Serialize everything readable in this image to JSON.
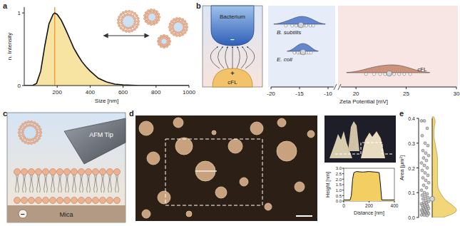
{
  "chart_data": [
    {
      "type": "line",
      "label": "a",
      "x_label": "Size [nm]",
      "y_label": "n. Intensity",
      "x": [
        0,
        50,
        75,
        100,
        125,
        150,
        175,
        185,
        200,
        225,
        250,
        275,
        300,
        325,
        350,
        375,
        400,
        450,
        500,
        550,
        600,
        700,
        800,
        900,
        1000
      ],
      "values": [
        0,
        0,
        0.03,
        0.2,
        0.55,
        0.85,
        0.98,
        1,
        0.98,
        0.9,
        0.78,
        0.65,
        0.52,
        0.42,
        0.33,
        0.26,
        0.2,
        0.1,
        0.05,
        0.02,
        0.01,
        0,
        0,
        0,
        0
      ],
      "color": "#f7e4a3",
      "reference_line": 185,
      "xlim": [
        0,
        1000
      ],
      "xticks": [
        200,
        400,
        600,
        800,
        1000
      ],
      "ylim": [
        0,
        1.08
      ],
      "yticks": [
        0,
        1
      ]
    },
    {
      "type": "violin",
      "label": "b",
      "x_label": "Zeta Potential [mV]",
      "series": [
        {
          "name": "B. subtilis",
          "color": "#4a74c9",
          "values": [
            -17.4,
            -16.3,
            -15.6,
            -15.1,
            -14.7,
            -14.3,
            -13.8,
            -13.1,
            -12.6
          ]
        },
        {
          "name": "E. coli",
          "color": "#4a74c9",
          "values": [
            -15.9,
            -15.3,
            -15.0,
            -14.7,
            -14.4,
            -14.1,
            -13.8,
            -13.4,
            -13.0
          ]
        },
        {
          "name": "cFL",
          "color": "#c4846a",
          "values": [
            21.0,
            21.8,
            22.4,
            22.9,
            23.4,
            23.8,
            24.3,
            24.8,
            25.4
          ]
        }
      ],
      "axis_segments": [
        {
          "xlim": [
            -20,
            -9
          ],
          "xticks": [
            -20,
            -15,
            -10
          ]
        },
        {
          "xlim": [
            18.5,
            30
          ],
          "xticks": [
            20,
            25,
            30
          ]
        }
      ]
    },
    {
      "type": "line",
      "x_label": "Distance [nm]",
      "y_label": "Height [nm]",
      "x": [
        0,
        50,
        60,
        70,
        80,
        100,
        150,
        200,
        250,
        280,
        290,
        300,
        350,
        400
      ],
      "values": [
        0.1,
        0.1,
        0.5,
        2.0,
        2.6,
        2.7,
        2.65,
        2.7,
        2.65,
        2.6,
        1.5,
        0.1,
        0.1,
        0.1
      ],
      "color": "#f3cf63",
      "xlim": [
        0,
        400
      ],
      "xticks": [
        0,
        200,
        400
      ],
      "ylim": [
        0,
        3
      ],
      "yticks": [
        {
          "value": 0,
          "label": "0.0"
        },
        {
          "value": 0.5,
          "label": "0.5"
        },
        {
          "value": 1,
          "label": "1.0"
        },
        {
          "value": 1.5,
          "label": "1.5"
        },
        {
          "value": 2,
          "label": "2.0"
        },
        {
          "value": 2.5,
          "label": "2.5"
        },
        {
          "value": 3,
          "label": "3.0"
        }
      ]
    },
    {
      "type": "violin",
      "label": "e",
      "y_label": "Area [µm²]",
      "values": [
        0.39,
        0.39,
        0.36,
        0.33,
        0.3,
        0.29,
        0.27,
        0.26,
        0.25,
        0.24,
        0.23,
        0.22,
        0.21,
        0.2,
        0.19,
        0.18,
        0.17,
        0.16,
        0.15,
        0.14,
        0.13,
        0.12,
        0.11,
        0.1,
        0.095,
        0.09,
        0.085,
        0.08,
        0.075,
        0.07,
        0.065,
        0.06,
        0.058,
        0.055,
        0.052,
        0.05,
        0.048,
        0.045,
        0.043,
        0.04,
        0.038,
        0.036,
        0.034,
        0.032,
        0.03,
        0.028,
        0.026,
        0.024,
        0.022,
        0.02,
        0.018,
        0.016,
        0.015,
        0.013,
        0.012,
        0.01,
        0.009,
        0.008
      ],
      "color": "#f3d57a",
      "ylim": [
        0,
        0.4
      ],
      "yticks": [
        {
          "value": 0,
          "label": "0.0"
        },
        {
          "value": 0.1,
          "label": "0.1"
        },
        {
          "value": 0.2,
          "label": "0.2"
        },
        {
          "value": 0.3,
          "label": "0.3"
        },
        {
          "value": 0.4,
          "label": "0.4"
        }
      ]
    }
  ],
  "diagrams": {
    "b_schematic": {
      "top": "Bacterium",
      "bottom": "cFL",
      "top_charge": "−",
      "bottom_charge": "+"
    },
    "c": {
      "label": "c",
      "tip": "AFM Tip",
      "substrate": "Mica",
      "substrate_charge": "−"
    },
    "d": {
      "label": "d"
    }
  }
}
